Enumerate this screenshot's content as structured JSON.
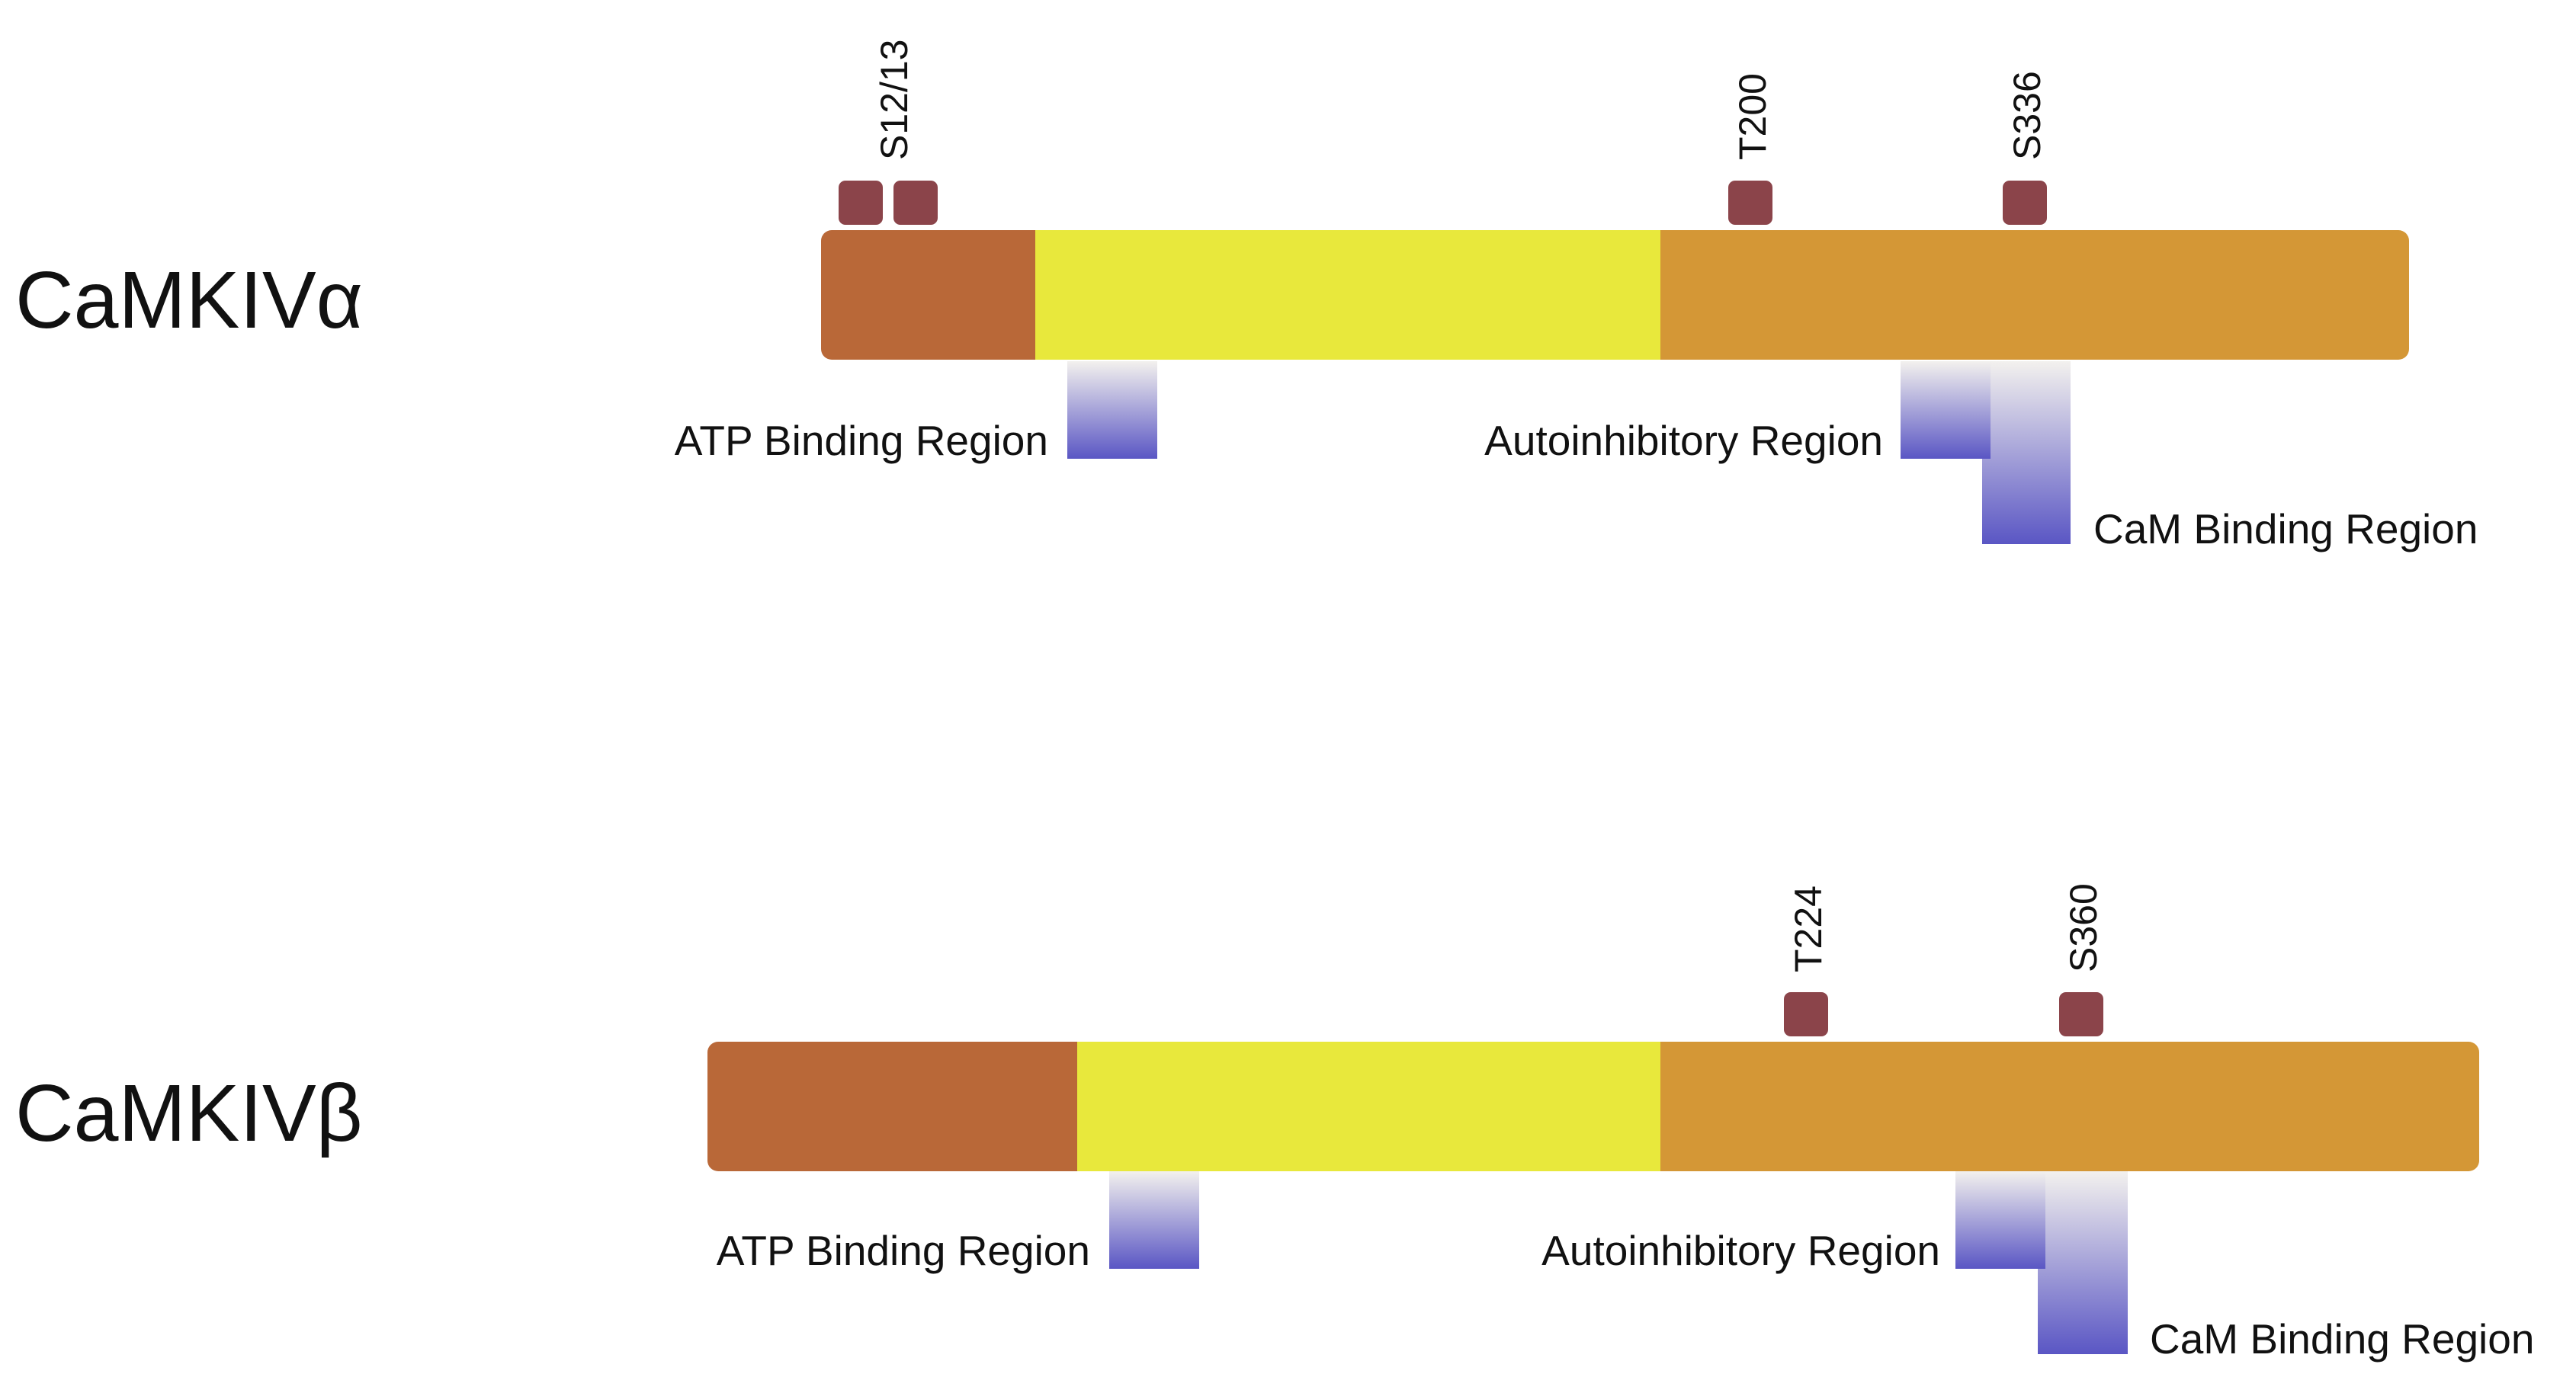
{
  "colors": {
    "n_terminal": "#b96838",
    "kinase_domain": "#e8e83c",
    "regulatory_domain": "#d49736",
    "phospho_site": "#8b444a",
    "region_gradient_top": "#f3f1ee",
    "region_gradient_bottom": "#5a56c4",
    "text": "#111111"
  },
  "proteins": [
    {
      "name": "CaMKIVα",
      "phospho_sites": [
        "S12/13",
        "T200",
        "S336"
      ],
      "regions": {
        "atp": "ATP Binding Region",
        "autoinhibitory": "Autoinhibitory Region",
        "cam": "CaM Binding Region"
      }
    },
    {
      "name": "CaMKIVβ",
      "phospho_sites": [
        "T224",
        "S360"
      ],
      "regions": {
        "atp": "ATP Binding Region",
        "autoinhibitory": "Autoinhibitory Region",
        "cam": "CaM Binding Region"
      }
    }
  ]
}
